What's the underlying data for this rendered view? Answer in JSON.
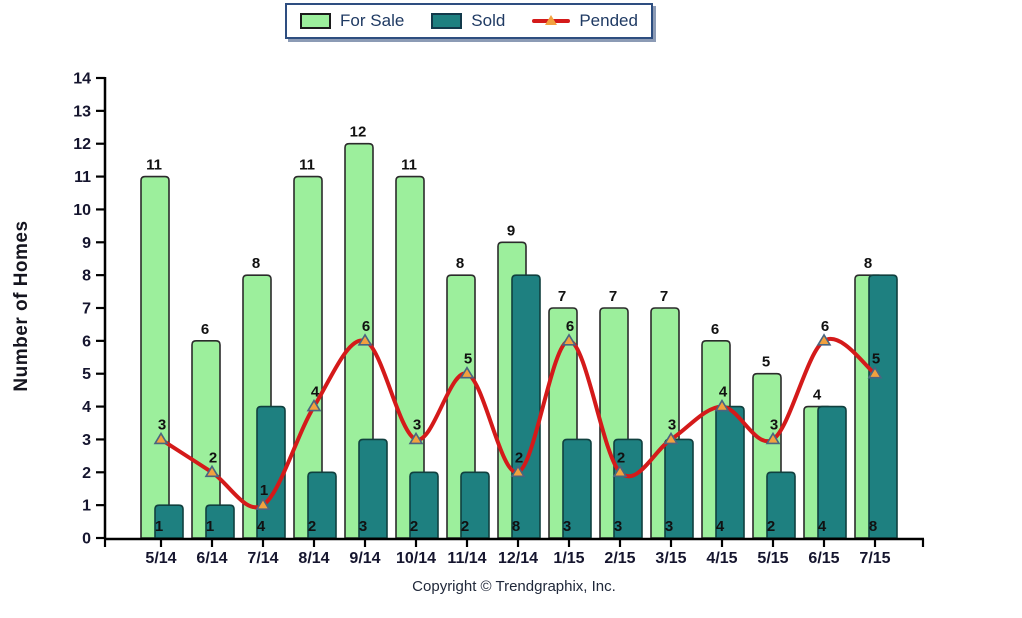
{
  "legend": {
    "for_sale": "For Sale",
    "sold": "Sold",
    "pended": "Pended"
  },
  "footer": {
    "copyright": "Copyright © Trendgraphix, Inc."
  },
  "chart_data": {
    "type": "bar",
    "subtype": "overlapped-bars-with-line-overlay",
    "title": "",
    "xlabel": "",
    "ylabel": "Number of Homes",
    "ylim": [
      0,
      14
    ],
    "ytick_step": 1,
    "grid": false,
    "legend_position": "top",
    "categories": [
      "5/14",
      "6/14",
      "7/14",
      "8/14",
      "9/14",
      "10/14",
      "11/14",
      "12/14",
      "1/15",
      "2/15",
      "3/15",
      "4/15",
      "5/15",
      "6/15",
      "7/15"
    ],
    "series": [
      {
        "name": "For Sale",
        "type": "bar",
        "color": "#9CEF9C",
        "border_color": "#2b2b2b",
        "values": [
          11,
          6,
          8,
          11,
          12,
          11,
          8,
          9,
          7,
          7,
          7,
          6,
          5,
          4,
          8
        ]
      },
      {
        "name": "Sold",
        "type": "bar",
        "color": "#1E8080",
        "border_color": "#10403f",
        "values": [
          1,
          1,
          4,
          2,
          3,
          2,
          2,
          8,
          3,
          3,
          3,
          4,
          2,
          4,
          8
        ]
      },
      {
        "name": "Pended",
        "type": "line",
        "color": "#D41A1A",
        "marker": "triangle",
        "marker_fill": "#F2A13F",
        "marker_border": "#4A6580",
        "values": [
          3,
          2,
          1,
          4,
          6,
          3,
          5,
          2,
          6,
          2,
          3,
          4,
          3,
          6,
          5
        ]
      }
    ],
    "value_label_color": "#111111",
    "tick_label_color": "#15152e",
    "axis_color": "#000000"
  }
}
